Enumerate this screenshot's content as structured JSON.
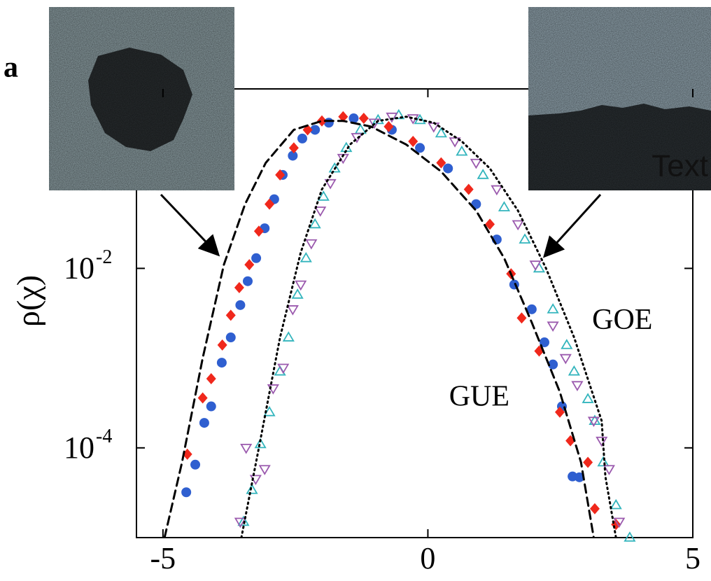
{
  "chart_data": {
    "type": "scatter",
    "panel_label": "a",
    "ylabel": "ρ(χ)",
    "inset_text": "Text",
    "annotations": [
      {
        "text": "GOE",
        "x": 3.1,
        "y": 0.0025
      },
      {
        "text": "GUE",
        "x": 0.4,
        "y": 0.00035
      }
    ],
    "xlim": [
      -5.5,
      5
    ],
    "xticks": [
      -5,
      0,
      5
    ],
    "ylim": [
      1e-05,
      1
    ],
    "log_y": true,
    "yticks": [
      {
        "value": 0.0001,
        "label": "10",
        "exponent": "-4"
      },
      {
        "value": 0.01,
        "label": "10",
        "exponent": "-2"
      }
    ],
    "series": [
      {
        "marker": "circle",
        "color": "#2f5fd0",
        "x": [
          -4.56,
          -4.39,
          -4.22,
          -4.09,
          -3.89,
          -3.72,
          -3.54,
          -3.4,
          -3.24,
          -3.08,
          -2.9,
          -2.74,
          -2.55,
          -2.37,
          -2.13,
          -1.87,
          -1.4,
          -0.68,
          -0.15,
          0.38,
          0.91,
          1.3,
          1.63,
          1.96,
          2.2,
          2.36,
          2.53,
          2.73,
          2.86
        ],
        "values": [
          3.2e-05,
          6.5e-05,
          0.00019,
          0.00029,
          0.00089,
          0.0017,
          0.0039,
          0.0072,
          0.013,
          0.028,
          0.059,
          0.11,
          0.18,
          0.28,
          0.35,
          0.42,
          0.47,
          0.35,
          0.22,
          0.13,
          0.052,
          0.021,
          0.0066,
          0.0035,
          0.0015,
          0.00085,
          0.00029,
          4.8e-05,
          4.7e-05
        ]
      },
      {
        "marker": "diamond",
        "color": "#f0281c",
        "x": [
          -4.54,
          -4.25,
          -4.09,
          -3.88,
          -3.72,
          -3.56,
          -3.37,
          -3.19,
          -2.99,
          -2.79,
          -2.53,
          -2.27,
          -2.0,
          -1.6,
          -1.21,
          -0.74,
          -0.28,
          0.25,
          0.77,
          1.17,
          1.57,
          1.77,
          2.1,
          2.49,
          2.69,
          3.02,
          3.15,
          3.55
        ],
        "values": [
          8.5e-05,
          0.00036,
          0.00059,
          0.0014,
          0.003,
          0.0061,
          0.011,
          0.026,
          0.052,
          0.11,
          0.22,
          0.35,
          0.44,
          0.49,
          0.47,
          0.38,
          0.26,
          0.15,
          0.076,
          0.031,
          0.0087,
          0.0028,
          0.0012,
          0.00025,
          0.00012,
          6.9e-05,
          2.1e-05,
          1.4e-05
        ]
      },
      {
        "marker": "triangle-up",
        "color": "#33b5bd",
        "x": [
          -3.48,
          -3.32,
          -3.16,
          -2.99,
          -2.79,
          -2.63,
          -2.46,
          -2.3,
          -2.13,
          -1.97,
          -1.76,
          -1.54,
          -1.27,
          -0.94,
          -0.55,
          -0.15,
          0.25,
          0.64,
          1.04,
          1.44,
          1.83,
          2.1,
          2.36,
          2.62,
          2.76,
          3.02,
          3.15,
          3.31,
          3.55,
          3.81
        ],
        "values": [
          1.5e-05,
          3.4e-05,
          0.00011,
          0.00025,
          0.00071,
          0.0017,
          0.0051,
          0.013,
          0.031,
          0.063,
          0.13,
          0.22,
          0.35,
          0.45,
          0.51,
          0.45,
          0.32,
          0.2,
          0.11,
          0.048,
          0.021,
          0.01,
          0.0035,
          0.0014,
          0.00071,
          0.00035,
          0.0002,
          6.9e-05,
          2.3e-05,
          1e-05
        ]
      },
      {
        "marker": "triangle-down",
        "color": "#9b5aae",
        "x": [
          -3.54,
          -3.43,
          -3.25,
          -3.08,
          -2.92,
          -2.73,
          -2.55,
          -2.4,
          -2.2,
          -2.03,
          -1.84,
          -1.6,
          -1.34,
          -1.01,
          -0.68,
          -0.28,
          0.11,
          0.51,
          0.91,
          1.3,
          1.7,
          2.03,
          2.36,
          2.6,
          2.82,
          3.13,
          3.28,
          3.42,
          3.61
        ],
        "values": [
          1.5e-05,
          0.0001,
          4.5e-05,
          5.8e-05,
          0.00046,
          0.00078,
          0.0035,
          0.0066,
          0.019,
          0.044,
          0.089,
          0.17,
          0.29,
          0.42,
          0.49,
          0.47,
          0.38,
          0.26,
          0.15,
          0.076,
          0.031,
          0.011,
          0.0023,
          0.001,
          0.0005,
          0.0002,
          0.00012,
          5.8e-05,
          1.5e-05
        ]
      },
      {
        "marker": "line",
        "style": "dashed",
        "color": "#000000",
        "x": [
          -4.97,
          -4.64,
          -4.25,
          -3.85,
          -3.45,
          -3.06,
          -2.53,
          -2.0,
          -1.6,
          -1.07,
          -0.41,
          0.25,
          0.91,
          1.44,
          1.96,
          2.49,
          2.89,
          3.13
        ],
        "values": [
          1e-05,
          6.9e-05,
          0.001,
          0.011,
          0.052,
          0.15,
          0.35,
          0.44,
          0.44,
          0.38,
          0.24,
          0.12,
          0.044,
          0.013,
          0.0025,
          0.00042,
          6.9e-05,
          1e-05
        ]
      },
      {
        "marker": "line",
        "style": "dotted",
        "color": "#000000",
        "x": [
          -3.52,
          -3.19,
          -2.79,
          -2.4,
          -2.0,
          -1.47,
          -0.94,
          -0.41,
          0.11,
          0.64,
          1.17,
          1.7,
          2.23,
          2.76,
          3.28,
          3.35,
          3.55
        ],
        "values": [
          1e-05,
          0.0001,
          0.0017,
          0.015,
          0.076,
          0.24,
          0.44,
          0.49,
          0.42,
          0.26,
          0.13,
          0.044,
          0.01,
          0.0017,
          0.0002,
          4.8e-05,
          1e-05
        ]
      }
    ]
  }
}
